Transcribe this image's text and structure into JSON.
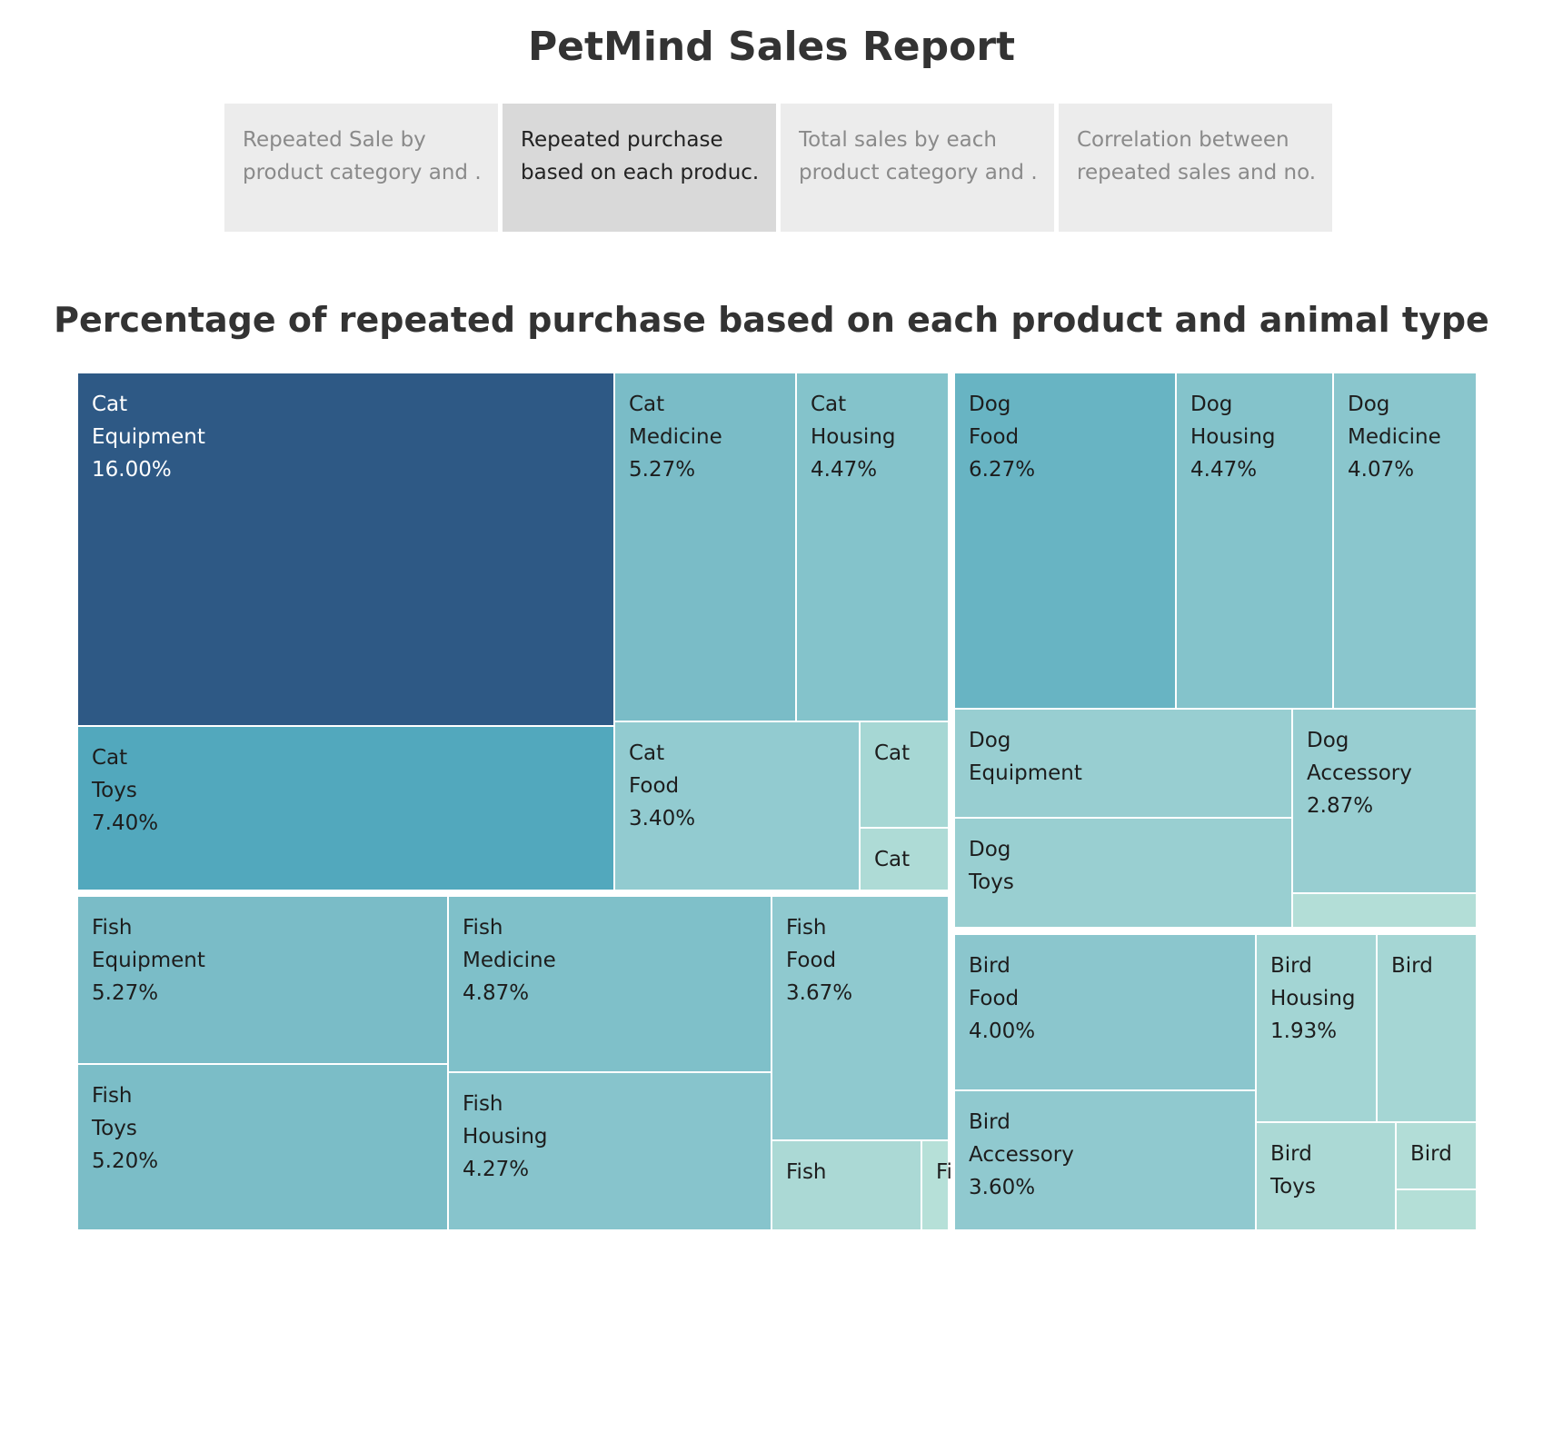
{
  "dashboard": {
    "title": "PetMind Sales Report"
  },
  "tabs": [
    {
      "line1": "Repeated Sale by",
      "line2": "product category and ..",
      "active": false
    },
    {
      "line1": "Repeated purchase",
      "line2": "based on each produc..",
      "active": true
    },
    {
      "line1": "Total sales by each",
      "line2": "product category and ..",
      "active": false
    },
    {
      "line1": "Correlation between",
      "line2": "repeated sales and no..",
      "active": false
    }
  ],
  "colors": {
    "darkest": "#2e5985",
    "dark": "#52a9be",
    "mid": "#74b9c5",
    "light": "#93cbd0",
    "lightest": "#b6e0d8",
    "text_dark": "#1d1d1d",
    "text_light": "#ffffff"
  },
  "chart_data": {
    "type": "treemap",
    "title": "Percentage of repeated purchase based on each product and animal type",
    "unit": "%",
    "groups": [
      {
        "name": "Cat",
        "items": [
          {
            "animal": "Cat",
            "category": "Equipment",
            "label": "16.00%",
            "value": 16.0
          },
          {
            "animal": "Cat",
            "category": "Toys",
            "label": "7.40%",
            "value": 7.4
          },
          {
            "animal": "Cat",
            "category": "Medicine",
            "label": "5.27%",
            "value": 5.27
          },
          {
            "animal": "Cat",
            "category": "Housing",
            "label": "4.47%",
            "value": 4.47
          },
          {
            "animal": "Cat",
            "category": "Food",
            "label": "3.40%",
            "value": 3.4
          },
          {
            "animal": "Cat",
            "category": "",
            "label": "",
            "value": 1.6
          },
          {
            "animal": "Cat",
            "category": "",
            "label": "",
            "value": 0.9
          }
        ]
      },
      {
        "name": "Dog",
        "items": [
          {
            "animal": "Dog",
            "category": "Food",
            "label": "6.27%",
            "value": 6.27
          },
          {
            "animal": "Dog",
            "category": "Housing",
            "label": "4.47%",
            "value": 4.47
          },
          {
            "animal": "Dog",
            "category": "Medicine",
            "label": "4.07%",
            "value": 4.07
          },
          {
            "animal": "Dog",
            "category": "Equipment",
            "label": "",
            "value": 2.9
          },
          {
            "animal": "Dog",
            "category": "Toys",
            "label": "",
            "value": 2.8
          },
          {
            "animal": "Dog",
            "category": "Accessory",
            "label": "2.87%",
            "value": 2.87
          },
          {
            "animal": "Dog",
            "category": "",
            "label": "",
            "value": 0.5
          }
        ]
      },
      {
        "name": "Fish",
        "items": [
          {
            "animal": "Fish",
            "category": "Equipment",
            "label": "5.27%",
            "value": 5.27
          },
          {
            "animal": "Fish",
            "category": "Toys",
            "label": "5.20%",
            "value": 5.2
          },
          {
            "animal": "Fish",
            "category": "Medicine",
            "label": "4.87%",
            "value": 4.87
          },
          {
            "animal": "Fish",
            "category": "Housing",
            "label": "4.27%",
            "value": 4.27
          },
          {
            "animal": "Fish",
            "category": "Food",
            "label": "3.67%",
            "value": 3.67
          },
          {
            "animal": "Fish",
            "category": "",
            "label": "",
            "value": 1.2
          },
          {
            "animal": "Fish",
            "category": "",
            "label": "",
            "value": 0.2
          }
        ]
      },
      {
        "name": "Bird",
        "items": [
          {
            "animal": "Bird",
            "category": "Food",
            "label": "4.00%",
            "value": 4.0
          },
          {
            "animal": "Bird",
            "category": "Accessory",
            "label": "3.60%",
            "value": 3.6
          },
          {
            "animal": "Bird",
            "category": "Housing",
            "label": "1.93%",
            "value": 1.93
          },
          {
            "animal": "Bird",
            "category": "",
            "label": "",
            "value": 1.7
          },
          {
            "animal": "Bird",
            "category": "Toys",
            "label": "",
            "value": 1.2
          },
          {
            "animal": "Bird",
            "category": "",
            "label": "",
            "value": 0.6
          },
          {
            "animal": "Bird",
            "category": "",
            "label": "",
            "value": 0.4
          }
        ]
      }
    ]
  }
}
